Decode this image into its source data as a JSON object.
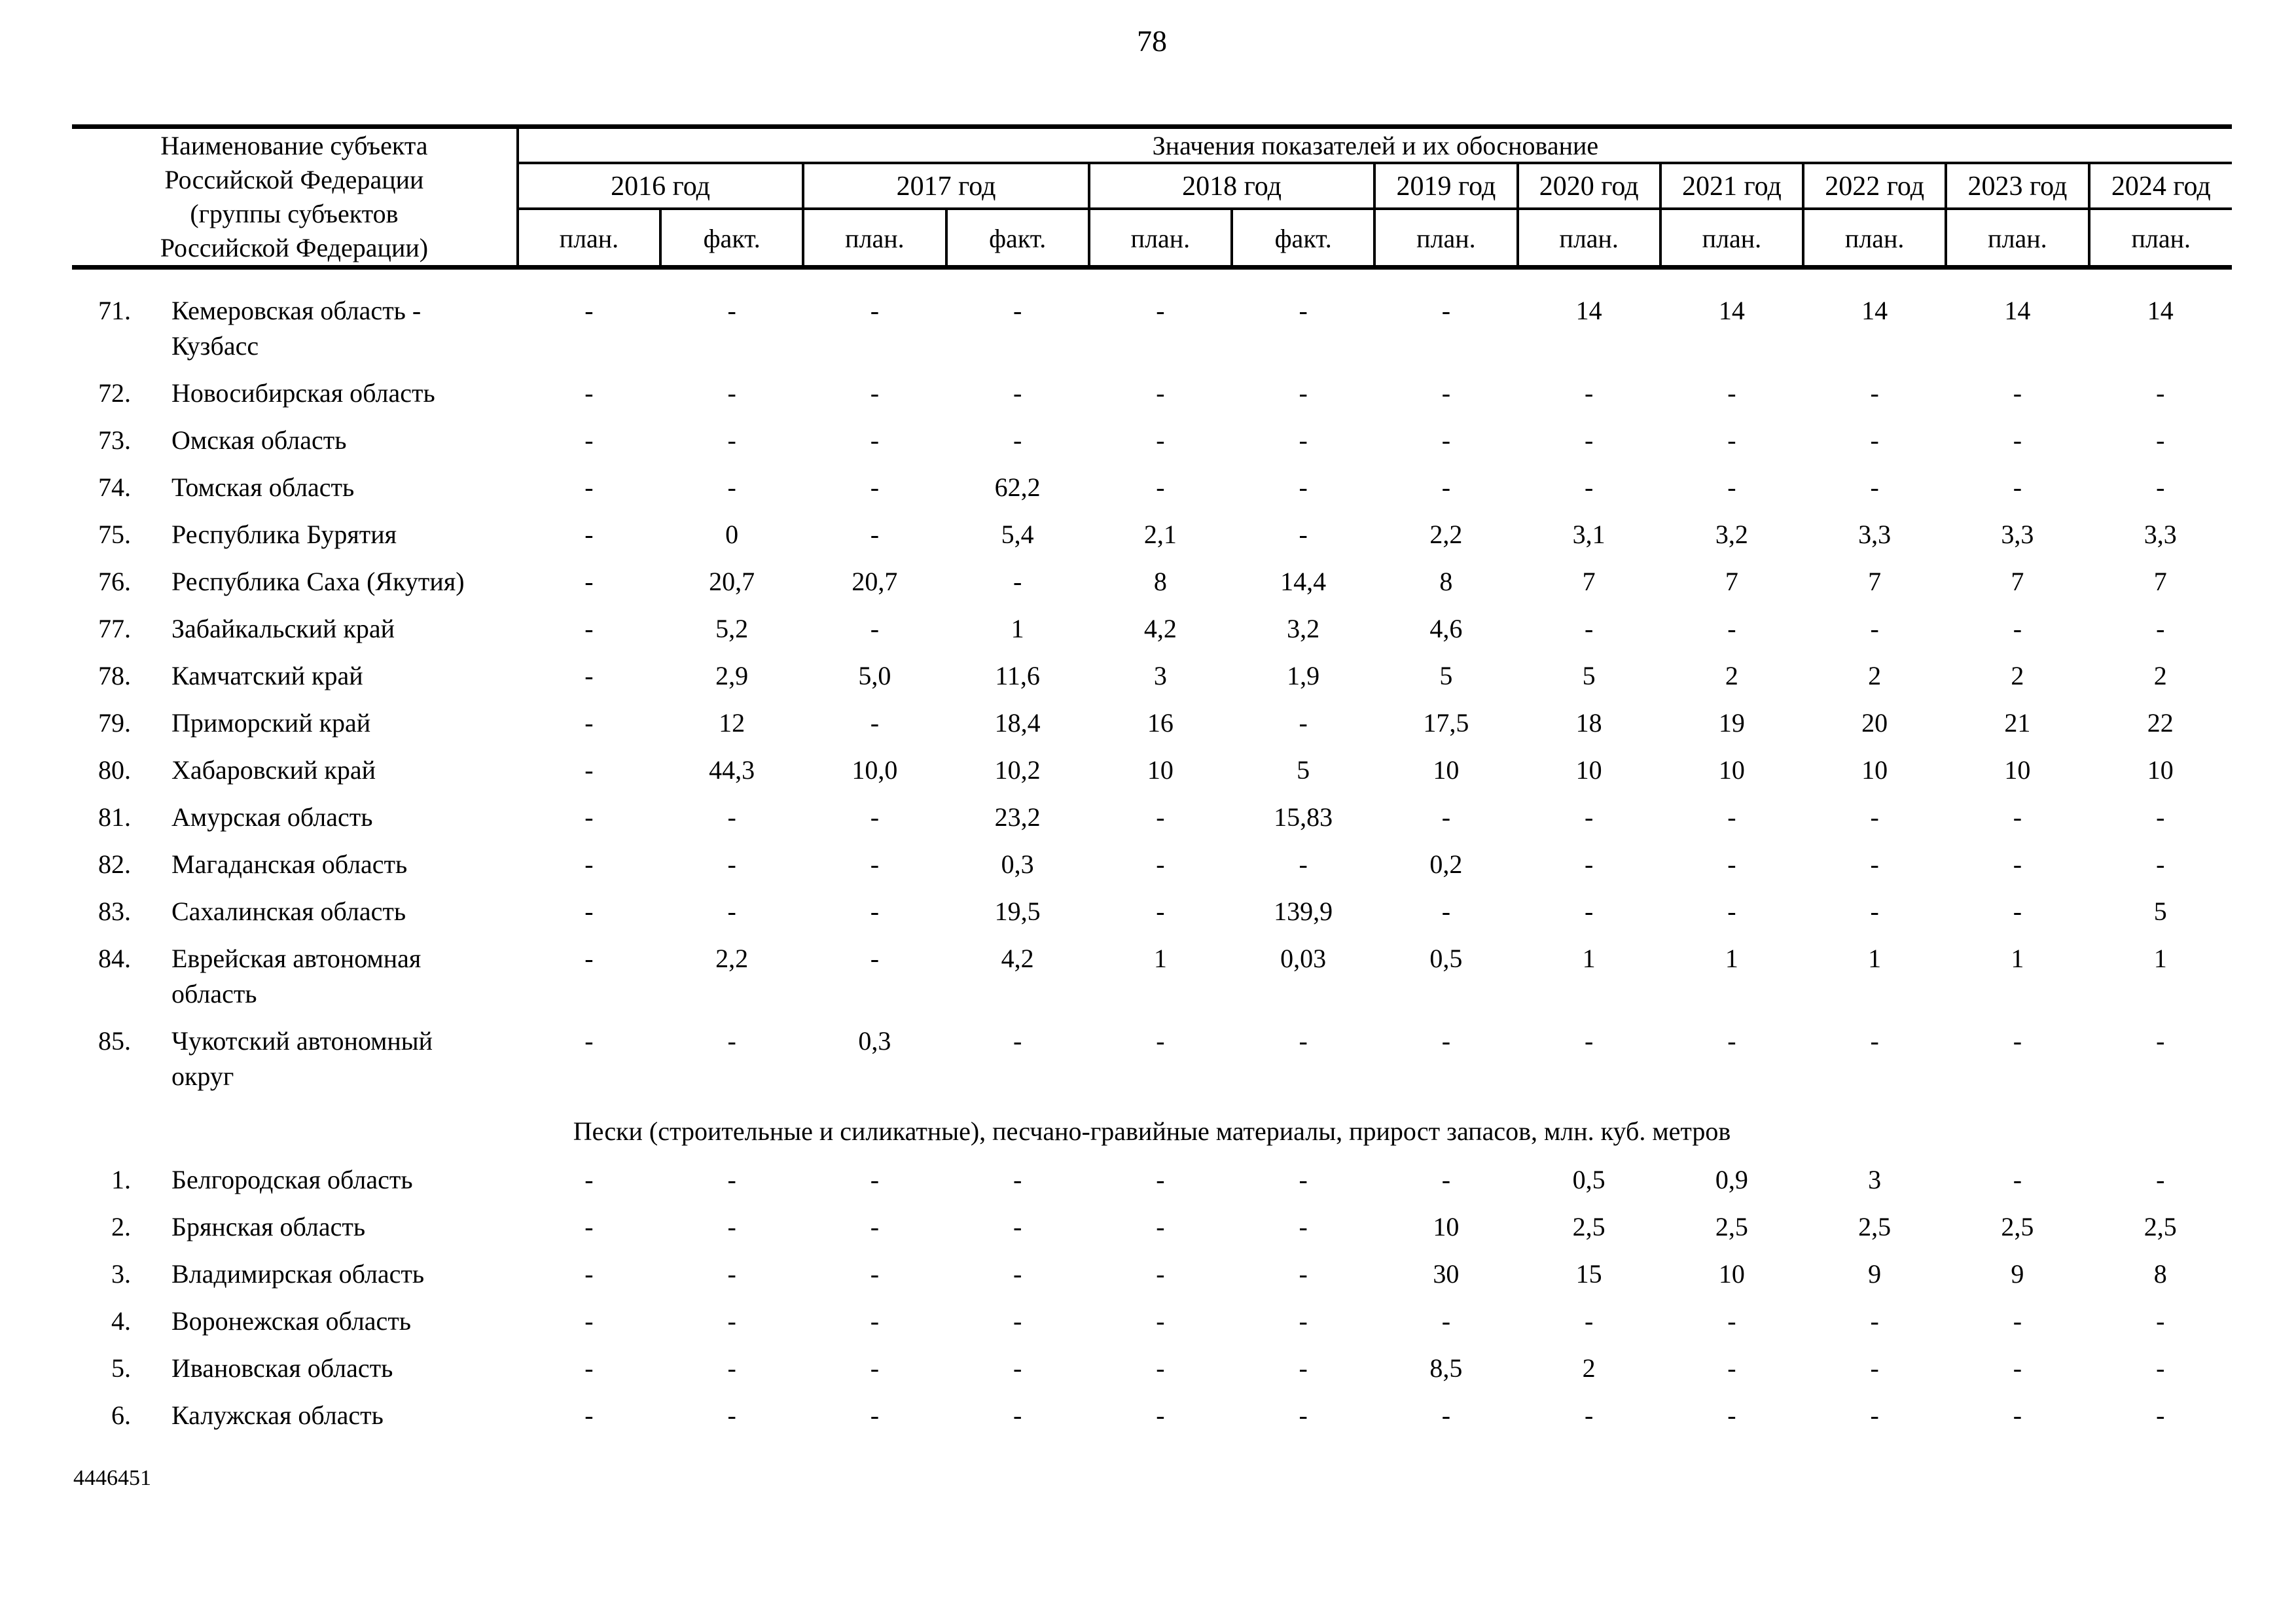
{
  "page": {
    "number": "78",
    "footer_code": "4446451"
  },
  "table": {
    "name_column_header": "Наименование субъекта Российской Федерации (группы субъектов Российской Федерации)",
    "values_header": "Значения показателей и их обоснование",
    "year_groups": [
      {
        "label": "2016 год",
        "sub_columns": [
          "план.",
          "факт."
        ]
      },
      {
        "label": "2017 год",
        "sub_columns": [
          "план.",
          "факт."
        ]
      },
      {
        "label": "2018 год",
        "sub_columns": [
          "план.",
          "факт."
        ]
      },
      {
        "label": "2019 год",
        "sub_columns": [
          "план."
        ]
      },
      {
        "label": "2020 год",
        "sub_columns": [
          "план."
        ]
      },
      {
        "label": "2021 год",
        "sub_columns": [
          "план."
        ]
      },
      {
        "label": "2022 год",
        "sub_columns": [
          "план."
        ]
      },
      {
        "label": "2023 год",
        "sub_columns": [
          "план."
        ]
      },
      {
        "label": "2024 год",
        "sub_columns": [
          "план."
        ]
      }
    ],
    "sections": [
      {
        "title": "",
        "rows": [
          {
            "num": "71.",
            "name": "Кемеровская область - Кузбасс",
            "values": [
              "-",
              "-",
              "-",
              "-",
              "-",
              "-",
              "-",
              "14",
              "14",
              "14",
              "14",
              "14"
            ]
          },
          {
            "num": "72.",
            "name": "Новосибирская область",
            "values": [
              "-",
              "-",
              "-",
              "-",
              "-",
              "-",
              "-",
              "-",
              "-",
              "-",
              "-",
              "-"
            ]
          },
          {
            "num": "73.",
            "name": "Омская область",
            "values": [
              "-",
              "-",
              "-",
              "-",
              "-",
              "-",
              "-",
              "-",
              "-",
              "-",
              "-",
              "-"
            ]
          },
          {
            "num": "74.",
            "name": "Томская область",
            "values": [
              "-",
              "-",
              "-",
              "62,2",
              "-",
              "-",
              "-",
              "-",
              "-",
              "-",
              "-",
              "-"
            ]
          },
          {
            "num": "75.",
            "name": "Республика Бурятия",
            "values": [
              "-",
              "0",
              "-",
              "5,4",
              "2,1",
              "-",
              "2,2",
              "3,1",
              "3,2",
              "3,3",
              "3,3",
              "3,3"
            ]
          },
          {
            "num": "76.",
            "name": "Республика Саха (Якутия)",
            "values": [
              "-",
              "20,7",
              "20,7",
              "-",
              "8",
              "14,4",
              "8",
              "7",
              "7",
              "7",
              "7",
              "7"
            ]
          },
          {
            "num": "77.",
            "name": "Забайкальский край",
            "values": [
              "-",
              "5,2",
              "-",
              "1",
              "4,2",
              "3,2",
              "4,6",
              "-",
              "-",
              "-",
              "-",
              "-"
            ]
          },
          {
            "num": "78.",
            "name": "Камчатский край",
            "values": [
              "-",
              "2,9",
              "5,0",
              "11,6",
              "3",
              "1,9",
              "5",
              "5",
              "2",
              "2",
              "2",
              "2"
            ]
          },
          {
            "num": "79.",
            "name": "Приморский край",
            "values": [
              "-",
              "12",
              "-",
              "18,4",
              "16",
              "-",
              "17,5",
              "18",
              "19",
              "20",
              "21",
              "22"
            ]
          },
          {
            "num": "80.",
            "name": "Хабаровский край",
            "values": [
              "-",
              "44,3",
              "10,0",
              "10,2",
              "10",
              "5",
              "10",
              "10",
              "10",
              "10",
              "10",
              "10"
            ]
          },
          {
            "num": "81.",
            "name": "Амурская область",
            "values": [
              "-",
              "-",
              "-",
              "23,2",
              "-",
              "15,83",
              "-",
              "-",
              "-",
              "-",
              "-",
              "-"
            ]
          },
          {
            "num": "82.",
            "name": "Магаданская область",
            "values": [
              "-",
              "-",
              "-",
              "0,3",
              "-",
              "-",
              "0,2",
              "-",
              "-",
              "-",
              "-",
              "-"
            ]
          },
          {
            "num": "83.",
            "name": "Сахалинская область",
            "values": [
              "-",
              "-",
              "-",
              "19,5",
              "-",
              "139,9",
              "-",
              "-",
              "-",
              "-",
              "-",
              "5"
            ]
          },
          {
            "num": "84.",
            "name": "Еврейская автономная область",
            "values": [
              "-",
              "2,2",
              "-",
              "4,2",
              "1",
              "0,03",
              "0,5",
              "1",
              "1",
              "1",
              "1",
              "1"
            ]
          },
          {
            "num": "85.",
            "name": "Чукотский автономный округ",
            "values": [
              "-",
              "-",
              "0,3",
              "-",
              "-",
              "-",
              "-",
              "-",
              "-",
              "-",
              "-",
              "-"
            ]
          }
        ]
      },
      {
        "title": "Пески (строительные и силикатные), песчано-гравийные материалы, прирост запасов, млн. куб. метров",
        "rows": [
          {
            "num": "1.",
            "name": "Белгородская область",
            "values": [
              "-",
              "-",
              "-",
              "-",
              "-",
              "-",
              "-",
              "0,5",
              "0,9",
              "3",
              "-",
              "-"
            ]
          },
          {
            "num": "2.",
            "name": "Брянская область",
            "values": [
              "-",
              "-",
              "-",
              "-",
              "-",
              "-",
              "10",
              "2,5",
              "2,5",
              "2,5",
              "2,5",
              "2,5"
            ]
          },
          {
            "num": "3.",
            "name": "Владимирская область",
            "values": [
              "-",
              "-",
              "-",
              "-",
              "-",
              "-",
              "30",
              "15",
              "10",
              "9",
              "9",
              "8"
            ]
          },
          {
            "num": "4.",
            "name": "Воронежская область",
            "values": [
              "-",
              "-",
              "-",
              "-",
              "-",
              "-",
              "-",
              "-",
              "-",
              "-",
              "-",
              "-"
            ]
          },
          {
            "num": "5.",
            "name": "Ивановская область",
            "values": [
              "-",
              "-",
              "-",
              "-",
              "-",
              "-",
              "8,5",
              "2",
              "-",
              "-",
              "-",
              "-"
            ]
          },
          {
            "num": "6.",
            "name": "Калужская область",
            "values": [
              "-",
              "-",
              "-",
              "-",
              "-",
              "-",
              "-",
              "-",
              "-",
              "-",
              "-",
              "-"
            ]
          }
        ]
      }
    ]
  }
}
